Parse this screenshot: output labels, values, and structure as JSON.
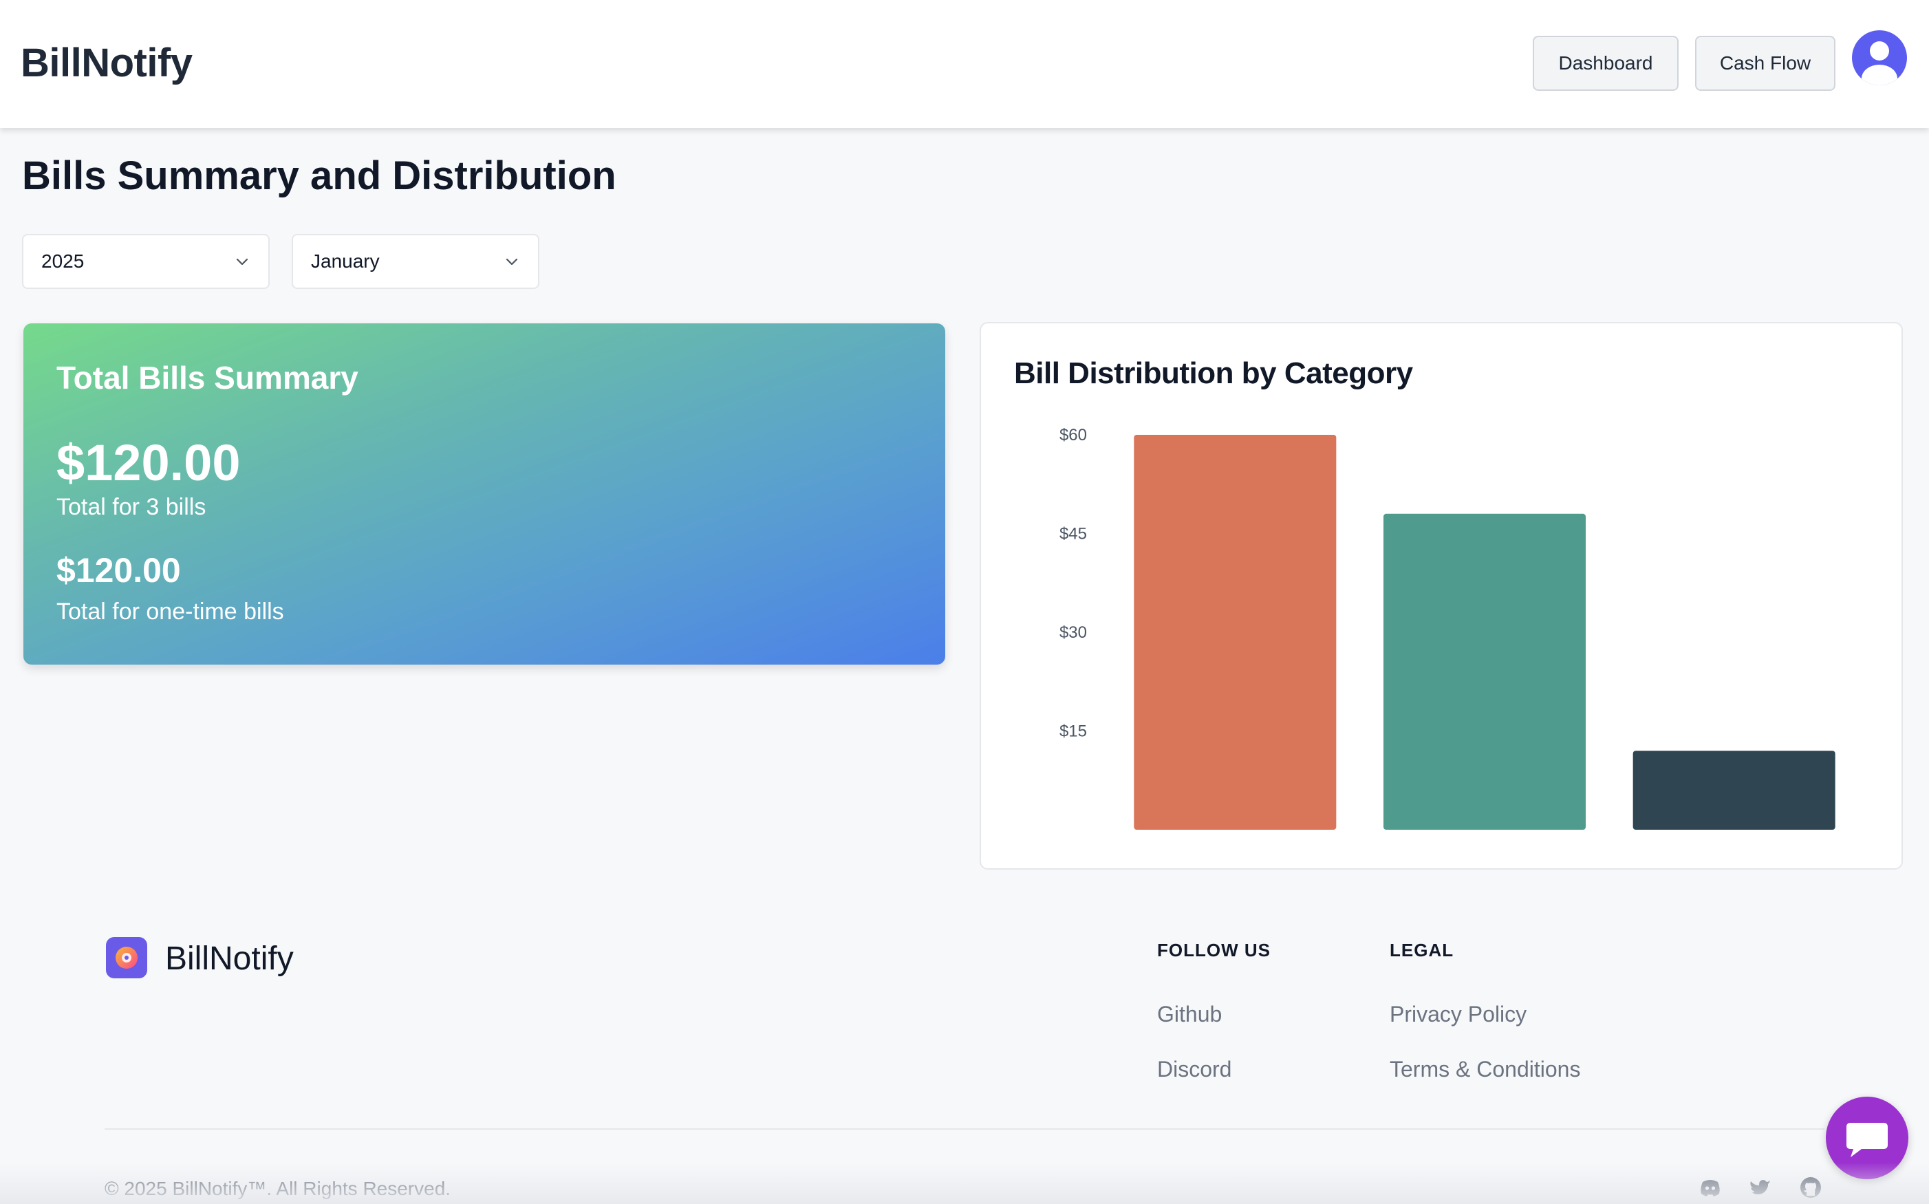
{
  "header": {
    "brand": "BillNotify",
    "nav": {
      "dashboard": "Dashboard",
      "cash_flow": "Cash Flow"
    },
    "avatar_icon": "user-avatar-icon"
  },
  "page": {
    "title": "Bills Summary and Distribution",
    "filters": {
      "year": "2025",
      "month": "January"
    }
  },
  "summary": {
    "title": "Total Bills Summary",
    "total_amount": "$120.00",
    "total_caption": "Total for 3 bills",
    "one_time_amount": "$120.00",
    "one_time_caption": "Total for one-time bills"
  },
  "chart_card": {
    "title": "Bill Distribution by Category"
  },
  "chart_data": {
    "type": "bar",
    "title": "Bill Distribution by Category",
    "xlabel": "",
    "ylabel": "",
    "categories": [
      "",
      "",
      ""
    ],
    "values": [
      60,
      48,
      12
    ],
    "colors": [
      "#d97559",
      "#4f9b8d",
      "#2f4552"
    ],
    "yticks": [
      "$15",
      "$30",
      "$45",
      "$60"
    ],
    "ytick_values": [
      15,
      30,
      45,
      60
    ],
    "ylim": [
      0,
      60
    ],
    "grid": false,
    "legend": "none"
  },
  "footer": {
    "brand": "BillNotify",
    "follow_heading": "FOLLOW US",
    "legal_heading": "LEGAL",
    "links": {
      "github": "Github",
      "discord": "Discord",
      "privacy": "Privacy Policy",
      "terms": "Terms & Conditions"
    },
    "copyright": "© 2025 BillNotify™. All Rights Reserved."
  },
  "colors": {
    "accent": "#5b5cf0",
    "chat_button": "#9b32d0"
  }
}
